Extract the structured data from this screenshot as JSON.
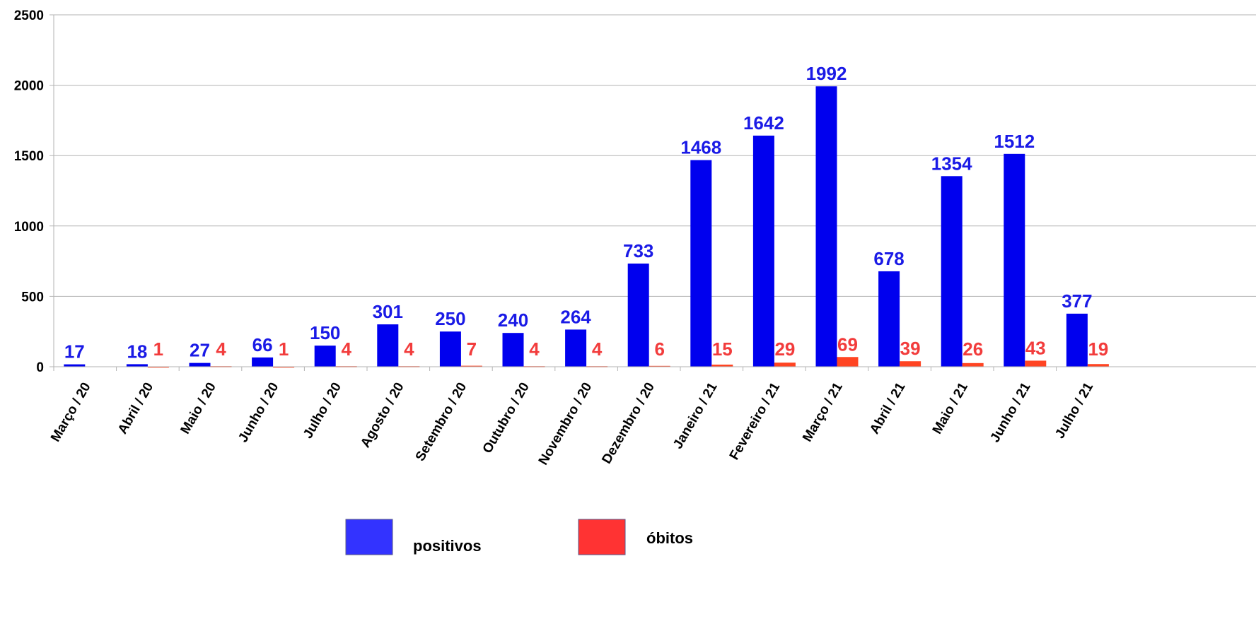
{
  "chart_data": {
    "type": "bar",
    "categories": [
      "Março / 20",
      "Abril / 20",
      "Maio / 20",
      "Junho / 20",
      "Julho / 20",
      "Agosto / 20",
      "Setembro / 20",
      "Outubro / 20",
      "Novembro / 20",
      "Dezembro / 20",
      "Janeiro / 21",
      "Fevereiro / 21",
      "Março / 21",
      "Abril / 21",
      "Maio / 21",
      "Junho / 21",
      "Julho / 21"
    ],
    "series": [
      {
        "name": "positivos",
        "color": "#0000ee",
        "legend_color": "#3333ff",
        "label_color": "#1a1ae6",
        "values": [
          17,
          18,
          27,
          66,
          150,
          301,
          250,
          240,
          264,
          733,
          1468,
          1642,
          1992,
          678,
          1354,
          1512,
          377
        ]
      },
      {
        "name": "óbitos",
        "color": "#ff4422",
        "legend_color": "#ff3333",
        "label_color": "#f23c3c",
        "values": [
          null,
          1,
          4,
          1,
          4,
          4,
          7,
          4,
          4,
          6,
          15,
          29,
          69,
          39,
          26,
          43,
          19
        ]
      }
    ],
    "yticks": [
      0,
      500,
      1000,
      1500,
      2000,
      2500
    ],
    "ylim": [
      0,
      2500
    ],
    "grid": "horizontal",
    "legend": "bottom-center",
    "title": "",
    "xlabel": "",
    "ylabel": ""
  }
}
